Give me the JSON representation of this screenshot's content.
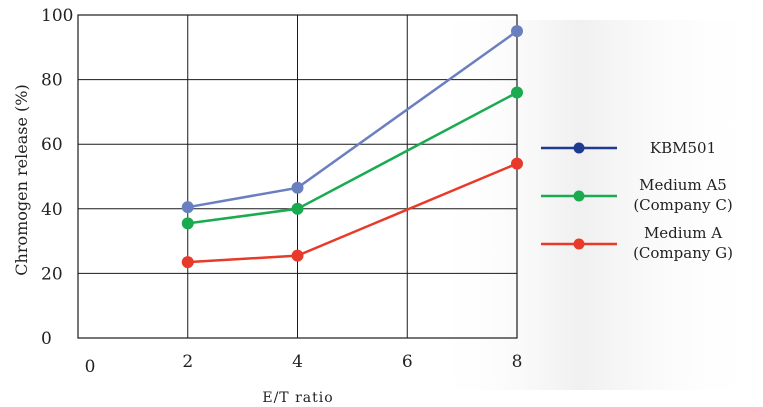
{
  "chart_data": {
    "type": "line",
    "xlabel": "E/T ratio",
    "ylabel": "Chromogen release (%)",
    "xlim": [
      0,
      8
    ],
    "ylim": [
      0,
      100
    ],
    "x_ticks": [
      "0",
      "2",
      "4",
      "6",
      "8"
    ],
    "y_ticks": [
      "0",
      "20",
      "40",
      "60",
      "80",
      "100"
    ],
    "x": [
      2,
      4,
      8
    ],
    "grid": true,
    "legend_position": "right",
    "series": [
      {
        "name": "KBM501",
        "name_lines": [
          "KBM501"
        ],
        "color": "#6a7fc0",
        "legend_color": "#1f3a8f",
        "values": [
          40.5,
          46.5,
          95
        ]
      },
      {
        "name": "Medium A5 (Company C)",
        "name_lines": [
          "Medium A5",
          "(Company C)"
        ],
        "color": "#1aaa4f",
        "legend_color": "#1aaa4f",
        "values": [
          35.5,
          40,
          76
        ]
      },
      {
        "name": "Medium A (Company G)",
        "name_lines": [
          "Medium A",
          "(Company G)"
        ],
        "color": "#e83a2a",
        "legend_color": "#e83a2a",
        "values": [
          23.5,
          25.5,
          54
        ]
      }
    ]
  }
}
